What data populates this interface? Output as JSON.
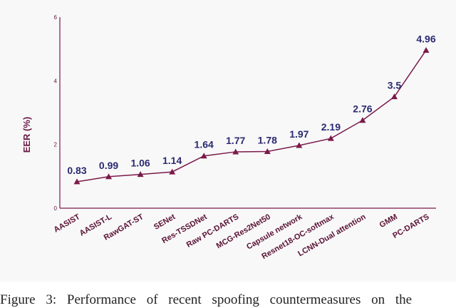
{
  "chart_data": {
    "type": "line",
    "ylabel": "EER (%)",
    "xlabel": "",
    "ylim": [
      0,
      6
    ],
    "yticks": [
      0,
      2,
      4,
      6
    ],
    "grid": false,
    "color": "#7a1a4a",
    "categories": [
      "AASIST",
      "AASIST-L",
      "RawGAT-ST",
      "SENet",
      "Res-TSSDNet",
      "Raw PC-DARTS",
      "MCG-Res2Net50",
      "Capsule network",
      "Resnet18-OC-softmax",
      "LCNN-Dual attention",
      "GMM",
      "PC-DARTS"
    ],
    "values": [
      0.83,
      0.99,
      1.06,
      1.14,
      1.64,
      1.77,
      1.78,
      1.97,
      2.19,
      2.76,
      3.5,
      4.96
    ],
    "data_labels": [
      "0.83",
      "0.99",
      "1.06",
      "1.14",
      "1.64",
      "1.77",
      "1.78",
      "1.97",
      "2.19",
      "2.76",
      "3.5",
      "4.96"
    ]
  },
  "caption": "Figure 3: Performance of recent spoofing countermeasures on the"
}
